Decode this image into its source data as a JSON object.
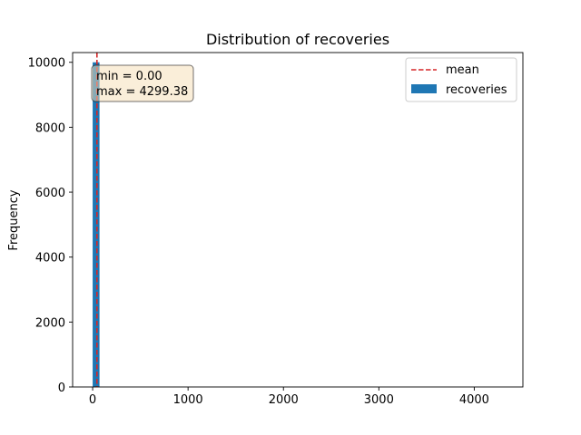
{
  "chart_data": {
    "type": "bar",
    "title": "Distribution of recoveries",
    "xlabel": "",
    "ylabel": "Frequency",
    "xlim": [
      -210,
      4510
    ],
    "ylim": [
      0,
      10300
    ],
    "xticks": [
      0,
      1000,
      2000,
      3000,
      4000
    ],
    "yticks": [
      0,
      2000,
      4000,
      6000,
      8000,
      10000
    ],
    "bins": [
      {
        "x0": 0.0,
        "x1": 71.66,
        "count": 10000
      }
    ],
    "mean": 45.0,
    "stats_box": {
      "min_line": "min = 0.00",
      "max_line": "max = 4299.38"
    },
    "legend": {
      "placement": "upper right",
      "entries": [
        "mean",
        "recoveries"
      ]
    },
    "colors": {
      "bar": "#1f77b4",
      "mean_line": "#d62728",
      "stats_box_fill": "#f5deb3"
    },
    "grid": false
  }
}
